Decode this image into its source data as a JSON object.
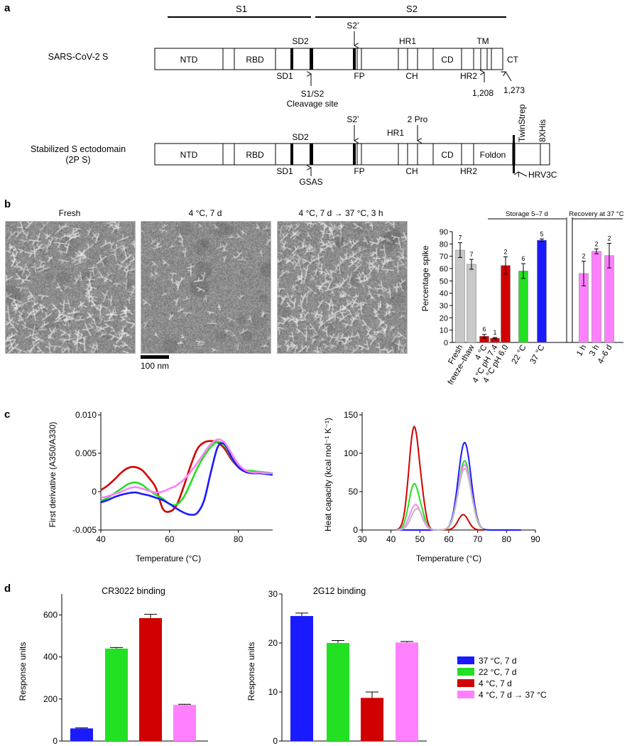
{
  "panel_a": {
    "label": "a",
    "s1_label": "S1",
    "s2_label": "S2",
    "top_construct": {
      "name": "SARS-CoV-2 S",
      "domains": [
        "NTD",
        "RBD",
        "HR1",
        "CD",
        "TM",
        "CT"
      ],
      "labels_above": [
        "SD2",
        "S2’"
      ],
      "labels_below": [
        "SD1",
        "FP",
        "CH",
        "HR2"
      ],
      "cleavage_label": "S1/S2",
      "cleavage_sublabel": "Cleavage site",
      "residue_1": "1,208",
      "residue_2": "1,273"
    },
    "bottom_construct": {
      "name": "Stabilized S ectodomain",
      "subname": "(2P S)",
      "domains": [
        "NTD",
        "RBD",
        "CD",
        "Foldon"
      ],
      "labels_above": [
        "SD2",
        "S2’",
        "2 Pro",
        "HR1"
      ],
      "labels_below": [
        "SD1",
        "FP",
        "CH",
        "HR2"
      ],
      "mutation_label": "GSAS",
      "tags": [
        "TwinStrep",
        "8XHis"
      ],
      "protease": "HRV3C"
    }
  },
  "panel_b": {
    "label": "b",
    "em_titles": [
      "Fresh",
      "4 °C, 7 d",
      "4 °C, 7 d → 37 °C, 3 h"
    ],
    "scale_bar": "100 nm",
    "group_labels": [
      "Storage 5–7 d",
      "Recovery at 37 °C"
    ],
    "chart_data": {
      "type": "bar",
      "ylabel": "Percentage spike",
      "ylim": [
        0,
        90
      ],
      "yticks": [
        0,
        10,
        20,
        30,
        40,
        50,
        60,
        70,
        80,
        90
      ],
      "categories": [
        "Fresh",
        "freeze–thaw",
        "4 °C",
        "4 °C pH 7.4",
        "4 °C pH 6.0",
        "22 °C",
        "37 °C",
        "1 h",
        "3 h",
        "4–6 d"
      ],
      "values": [
        75,
        63.5,
        5,
        3.5,
        62.5,
        58,
        83,
        56,
        74,
        70.5
      ],
      "errors": [
        6,
        4,
        1.5,
        0.5,
        7,
        6,
        1,
        10,
        2,
        10
      ],
      "n_labels": [
        "7",
        "7",
        "6",
        "1",
        "2",
        "6",
        "5",
        "2",
        "2",
        "2"
      ],
      "colors": [
        "#c8c8c8",
        "#c8c8c8",
        "#d10000",
        "#d10000",
        "#d10000",
        "#22e022",
        "#1a1aff",
        "#ff80ff",
        "#ff80ff",
        "#ff80ff"
      ]
    }
  },
  "panel_c": {
    "label": "c",
    "chart_data": [
      {
        "type": "line",
        "xlabel": "Temperature (°C)",
        "ylabel": "First derivative (A350/A330)",
        "xlim": [
          40,
          90
        ],
        "ylim": [
          -0.005,
          0.01
        ],
        "xticks": [
          "40",
          "60",
          "80"
        ],
        "yticks": [
          "-0.005",
          "0",
          "0.005",
          "0.010"
        ],
        "series": [
          {
            "color": "#d10000",
            "x": [
              40,
              42,
              44,
              46,
              48,
              50,
              52,
              54,
              56,
              58,
              60,
              62,
              64,
              66,
              68,
              70,
              72,
              74,
              76,
              78,
              80,
              82,
              84,
              86,
              88,
              90
            ],
            "y": [
              0.0002,
              0.0008,
              0.0016,
              0.0025,
              0.0031,
              0.0032,
              0.0028,
              0.0018,
              0.0005,
              -0.0022,
              -0.0026,
              -0.0018,
              0.0005,
              0.0032,
              0.0055,
              0.0064,
              0.0066,
              0.0064,
              0.0056,
              0.0042,
              0.0032,
              0.0026,
              0.0025,
              0.0025,
              0.0024,
              0.0024
            ]
          },
          {
            "color": "#22e022",
            "x": [
              40,
              42,
              44,
              46,
              48,
              50,
              52,
              54,
              56,
              58,
              60,
              62,
              64,
              66,
              68,
              70,
              72,
              74,
              76,
              78,
              80,
              82,
              84,
              86,
              88,
              90
            ],
            "y": [
              -0.0012,
              -0.0008,
              -0.0002,
              0.0004,
              0.001,
              0.0012,
              0.0009,
              0.0002,
              -0.0004,
              -0.0009,
              -0.0016,
              -0.0017,
              -0.0008,
              0.001,
              0.003,
              0.0046,
              0.0058,
              0.0065,
              0.006,
              0.0044,
              0.0032,
              0.0028,
              0.0027,
              0.0026,
              0.0025,
              0.0024
            ]
          },
          {
            "color": "#1a1aff",
            "x": [
              40,
              42,
              44,
              46,
              48,
              50,
              52,
              54,
              56,
              58,
              60,
              62,
              64,
              66,
              68,
              70,
              72,
              74,
              76,
              78,
              80,
              82,
              84,
              86,
              88,
              90
            ],
            "y": [
              -0.0014,
              -0.0011,
              -0.0007,
              -0.0004,
              -0.0002,
              -0.0001,
              -0.0003,
              -0.0005,
              -0.0008,
              -0.0011,
              -0.0016,
              -0.0022,
              -0.0027,
              -0.003,
              -0.0028,
              -0.0012,
              0.0025,
              0.0058,
              0.0062,
              0.0045,
              0.0032,
              0.0026,
              0.0024,
              0.0024,
              0.0023,
              0.0022
            ]
          },
          {
            "color": "#ff80ff",
            "x": [
              40,
              42,
              44,
              46,
              48,
              50,
              52,
              54,
              56,
              58,
              60,
              62,
              64,
              66,
              68,
              70,
              72,
              74,
              76,
              78,
              80,
              82,
              84,
              86,
              88,
              90
            ],
            "y": [
              -0.0008,
              -0.0006,
              -0.0003,
              0.0,
              0.0004,
              0.0006,
              0.0004,
              0.0001,
              -0.0001,
              0.0,
              0.0004,
              0.0008,
              0.0015,
              0.0025,
              0.0037,
              0.005,
              0.0062,
              0.0068,
              0.0064,
              0.005,
              0.0036,
              0.0028,
              0.0025,
              0.0025,
              0.0024,
              0.0024
            ]
          }
        ]
      },
      {
        "type": "line",
        "xlabel": "Temperature (°C)",
        "ylabel": "Heat capacity (kcal mol⁻¹ K⁻¹)",
        "xlim": [
          30,
          90
        ],
        "ylim": [
          0,
          150
        ],
        "xticks": [
          "30",
          "40",
          "50",
          "60",
          "70",
          "80",
          "90"
        ],
        "yticks": [
          "0",
          "50",
          "100",
          "150"
        ],
        "series": [
          {
            "color": "#d10000",
            "peaks": [
              [
                48,
                134,
                1.8
              ],
              [
                51,
                18,
                1.2
              ],
              [
                65,
                20,
                1.8
              ]
            ]
          },
          {
            "color": "#22e022",
            "peaks": [
              [
                48,
                60,
                1.8
              ],
              [
                51,
                10,
                1.2
              ],
              [
                65.5,
                90,
                2.2
              ]
            ]
          },
          {
            "color": "#1a1aff",
            "peaks": [
              [
                65.5,
                114,
                2.2
              ]
            ],
            "xend": 85
          },
          {
            "color": "#ff80ff",
            "peaks": [
              [
                48.5,
                33,
                2.0
              ],
              [
                65.5,
                85,
                2.3
              ]
            ]
          },
          {
            "color": "#bbbbbb",
            "peaks": [
              [
                49,
                28,
                2.0
              ],
              [
                65.5,
                80,
                2.3
              ]
            ]
          }
        ]
      }
    ]
  },
  "panel_d": {
    "label": "d",
    "legend": [
      {
        "label": "37 °C, 7 d",
        "color": "#1a1aff"
      },
      {
        "label": "22 °C, 7 d",
        "color": "#22e022"
      },
      {
        "label": "4 °C, 7 d",
        "color": "#d10000"
      },
      {
        "label": "4 °C, 7 d → 37 °C",
        "color": "#ff80ff"
      }
    ],
    "chart_data": [
      {
        "type": "bar",
        "title": "CR3022 binding",
        "ylabel": "Response units",
        "ylim": [
          0,
          700
        ],
        "yticks": [
          "0",
          "200",
          "400",
          "600"
        ],
        "values": [
          60,
          440,
          585,
          172
        ],
        "errors": [
          3,
          5,
          18,
          3
        ],
        "colors": [
          "#1a1aff",
          "#22e022",
          "#d10000",
          "#ff80ff"
        ]
      },
      {
        "type": "bar",
        "title": "2G12 binding",
        "ylabel": "Response units",
        "ylim": [
          0,
          30
        ],
        "yticks": [
          "0",
          "10",
          "20",
          "30"
        ],
        "values": [
          25.5,
          20,
          8.8,
          20.1
        ],
        "errors": [
          0.6,
          0.5,
          1.2,
          0.2
        ],
        "colors": [
          "#1a1aff",
          "#22e022",
          "#d10000",
          "#ff80ff"
        ]
      }
    ]
  }
}
